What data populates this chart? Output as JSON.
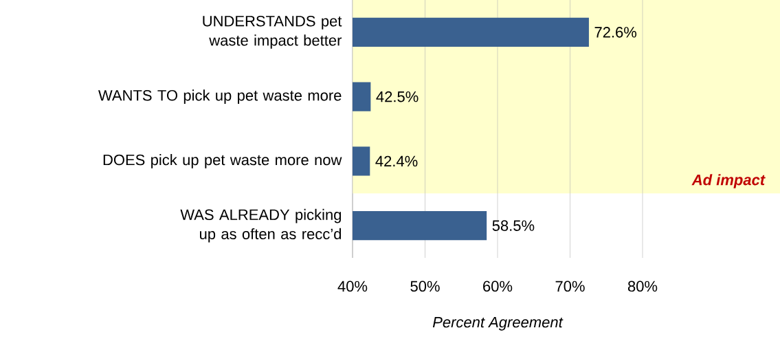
{
  "chart_data": {
    "type": "bar",
    "orientation": "horizontal",
    "categories": [
      "UNDERSTANDS pet waste impact better",
      "WANTS TO pick up pet waste more",
      "DOES pick up pet waste more now",
      "WAS ALREADY picking up as often as recc’d"
    ],
    "values": [
      72.6,
      42.5,
      42.4,
      58.5
    ],
    "value_labels": [
      "72.6%",
      "42.5%",
      "42.4%",
      "58.5%"
    ],
    "color": "#3a6190",
    "xlim": [
      40,
      80
    ],
    "xticks": [
      {
        "value": 40,
        "label": "40%"
      },
      {
        "value": 50,
        "label": "50%"
      },
      {
        "value": 60,
        "label": "60%"
      },
      {
        "value": 70,
        "label": "70%"
      },
      {
        "value": 80,
        "label": "80%"
      }
    ],
    "xlabel": "Percent Agreement",
    "grid": "x",
    "bands": [
      {
        "axis": "y",
        "from": "UNDERSTANDS pet waste impact better",
        "to": "DOES pick up pet waste more now",
        "label": "Ad impact",
        "color": "#ffffcc"
      }
    ]
  }
}
